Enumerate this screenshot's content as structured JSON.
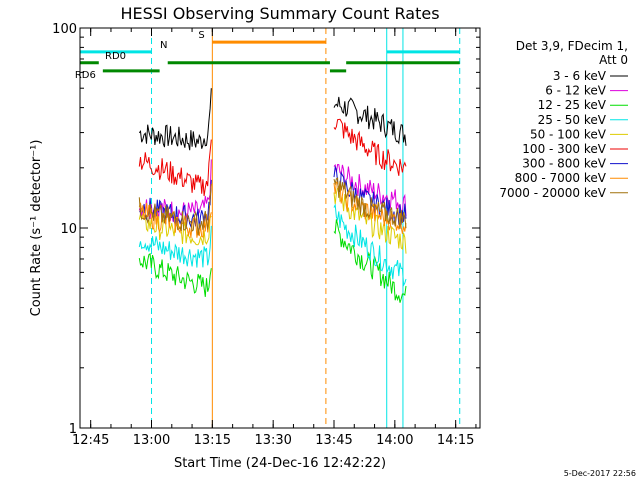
{
  "chart_data": {
    "type": "line",
    "title": "HESSI Observing Summary Count Rates",
    "xlabel": "Start Time (24-Dec-16 12:42:22)",
    "ylabel": "Count Rate (s⁻¹ detector⁻¹)",
    "xlim": [
      "12:42:22",
      "14:21:00"
    ],
    "ylim": [
      1,
      100
    ],
    "yscale": "log",
    "x_ticks": [
      "12:45",
      "13:00",
      "13:15",
      "13:30",
      "13:45",
      "14:00",
      "14:15"
    ],
    "y_ticks": [
      "1",
      "10",
      "100"
    ],
    "legend": {
      "position": "top-right, outside plot",
      "header": [
        "Det 3,9, FDecim 1,",
        "Att 0"
      ]
    },
    "series": [
      {
        "name": "3 - 6 keV",
        "color": "#000000",
        "segments": [
          {
            "x": [
              "12:57",
              "13:02",
              "13:07",
              "13:12",
              "13:14",
              "13:15"
            ],
            "y": [
              30,
              29,
              28,
              27,
              30,
              50
            ]
          },
          {
            "x": [
              "13:45",
              "13:48",
              "13:52",
              "13:56",
              "14:00",
              "14:03"
            ],
            "y": [
              42,
              40,
              37,
              34,
              31,
              29
            ]
          }
        ]
      },
      {
        "name": "6 - 12 keV",
        "color": "#dd00dd",
        "segments": [
          {
            "x": [
              "12:57",
              "13:02",
              "13:07",
              "13:12",
              "13:14",
              "13:15"
            ],
            "y": [
              13,
              12.5,
              12,
              12,
              13,
              22
            ]
          },
          {
            "x": [
              "13:45",
              "13:48",
              "13:52",
              "13:56",
              "14:00",
              "14:03"
            ],
            "y": [
              20,
              18,
              16,
              15,
              14,
              13
            ]
          }
        ]
      },
      {
        "name": "12 - 25 keV",
        "color": "#00dd00",
        "segments": [
          {
            "x": [
              "12:57",
              "13:02",
              "13:07",
              "13:12",
              "13:14",
              "13:15"
            ],
            "y": [
              7,
              6.2,
              5.6,
              5.2,
              5,
              8
            ]
          },
          {
            "x": [
              "13:45",
              "13:48",
              "13:52",
              "13:56",
              "14:00",
              "14:03"
            ],
            "y": [
              10,
              8.5,
              7,
              6,
              5,
              4.5
            ]
          }
        ]
      },
      {
        "name": "25 - 50 keV",
        "color": "#00e5e5",
        "segments": [
          {
            "x": [
              "12:57",
              "13:02",
              "13:07",
              "13:12",
              "13:14",
              "13:15"
            ],
            "y": [
              9,
              8,
              7.5,
              7.2,
              7,
              10
            ]
          },
          {
            "x": [
              "13:45",
              "13:48",
              "13:52",
              "13:56",
              "14:00",
              "14:03"
            ],
            "y": [
              12,
              10,
              8.5,
              7.2,
              6.2,
              5.8
            ]
          }
        ]
      },
      {
        "name": "50 - 100 keV",
        "color": "#ddcc00",
        "segments": [
          {
            "x": [
              "12:57",
              "13:02",
              "13:07",
              "13:12",
              "13:14",
              "13:15"
            ],
            "y": [
              11,
              10,
              9.5,
              9,
              9.5,
              13
            ]
          },
          {
            "x": [
              "13:45",
              "13:48",
              "13:52",
              "13:56",
              "14:00",
              "14:03"
            ],
            "y": [
              15,
              13,
              11,
              10,
              9,
              8.5
            ]
          }
        ]
      },
      {
        "name": "100 - 300 keV",
        "color": "#ee0000",
        "segments": [
          {
            "x": [
              "12:57",
              "13:02",
              "13:07",
              "13:12",
              "13:14",
              "13:15"
            ],
            "y": [
              22,
              20,
              18,
              16,
              17,
              35
            ]
          },
          {
            "x": [
              "13:45",
              "13:48",
              "13:52",
              "13:56",
              "14:00",
              "14:03"
            ],
            "y": [
              35,
              30,
              26,
              23,
              21,
              20
            ]
          }
        ]
      },
      {
        "name": "300 - 800 keV",
        "color": "#1010cc",
        "segments": [
          {
            "x": [
              "12:57",
              "13:02",
              "13:07",
              "13:12",
              "13:14",
              "13:15"
            ],
            "y": [
              13,
              12,
              11.5,
              11,
              12,
              18
            ]
          },
          {
            "x": [
              "13:45",
              "13:48",
              "13:52",
              "13:56",
              "14:00",
              "14:03"
            ],
            "y": [
              18,
              16,
              14,
              13,
              12,
              11.5
            ]
          }
        ]
      },
      {
        "name": "800 - 7000 keV",
        "color": "#ff8c00",
        "segments": [
          {
            "x": [
              "12:57",
              "13:02",
              "13:07",
              "13:12",
              "13:14",
              "13:15"
            ],
            "y": [
              12,
              11,
              10.5,
              10,
              10.5,
              15
            ]
          },
          {
            "x": [
              "13:45",
              "13:48",
              "13:52",
              "13:56",
              "14:00",
              "14:03"
            ],
            "y": [
              16,
              14,
              12.5,
              11.5,
              11,
              10.5
            ]
          }
        ]
      },
      {
        "name": "7000 - 20000 keV",
        "color": "#a0700a",
        "segments": [
          {
            "x": [
              "12:57",
              "13:02",
              "13:07",
              "13:12",
              "13:14",
              "13:15"
            ],
            "y": [
              12.5,
              11.5,
              11,
              10.5,
              11,
              16
            ]
          },
          {
            "x": [
              "13:45",
              "13:48",
              "13:52",
              "13:56",
              "14:00",
              "14:03"
            ],
            "y": [
              17,
              15,
              13,
              12,
              11.5,
              11
            ]
          }
        ]
      }
    ],
    "vertical_lines": [
      {
        "x": "12:42:22",
        "color": "#00e5e5",
        "style": "solid"
      },
      {
        "x": "13:00",
        "color": "#00e5e5",
        "style": "dashed"
      },
      {
        "x": "13:15",
        "color": "#ff8c00",
        "style": "solid"
      },
      {
        "x": "13:43",
        "color": "#ff8c00",
        "style": "dashed"
      },
      {
        "x": "13:58",
        "color": "#00e5e5",
        "style": "solid"
      },
      {
        "x": "14:02",
        "color": "#00e5e5",
        "style": "solid"
      },
      {
        "x": "14:16",
        "color": "#00e5e5",
        "style": "dashed"
      }
    ],
    "state_bars": [
      {
        "label": "N",
        "color": "#00e5e5",
        "level": 76,
        "ranges": [
          [
            "12:42:22",
            "13:00"
          ],
          [
            "13:58",
            "14:16"
          ]
        ]
      },
      {
        "label": "S",
        "color": "#ff8c00",
        "level": 85,
        "ranges": [
          [
            "13:15",
            "13:43"
          ]
        ]
      },
      {
        "label": "RD0",
        "color": "#008800",
        "level": 67,
        "ranges": [
          [
            "12:42:22",
            "12:47"
          ],
          [
            "13:04",
            "13:44"
          ],
          [
            "13:48",
            "14:16"
          ]
        ]
      },
      {
        "label": "RD6",
        "color": "#008800",
        "level": 61,
        "ranges": [
          [
            "12:48",
            "13:02"
          ],
          [
            "13:44",
            "13:48"
          ]
        ]
      }
    ]
  },
  "footer": {
    "timestamp": "5-Dec-2017 22:56"
  }
}
